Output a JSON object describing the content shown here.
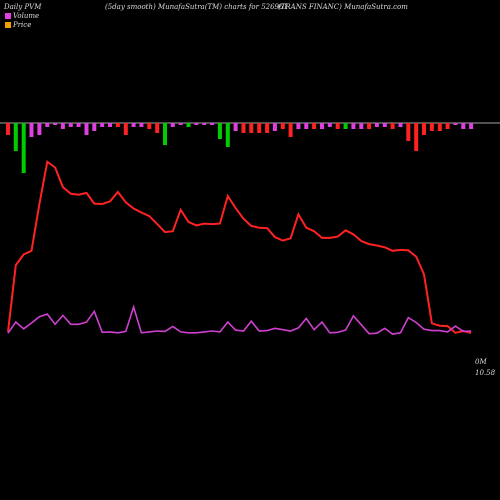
{
  "header": {
    "left": "Daily PVM",
    "center": "(5day smooth) MunafaSutra(TM) charts for 526961",
    "right": "(TRANS FINANC) MunafaSutra.com"
  },
  "legend": {
    "volume_label": "Volume",
    "price_label": "Price",
    "volume_color": "#e040e0",
    "price_color": "#f0a000"
  },
  "annotations": {
    "volume_zero": "0M",
    "last_price": "10.58"
  },
  "chart_data": {
    "type": "line",
    "n_points": 60,
    "series": [
      {
        "name": "Price",
        "color": "#ff2222",
        "values": [
          10.8,
          25.8,
          28.2,
          29.0,
          39.5,
          49.0,
          47.7,
          43.3,
          41.8,
          41.6,
          42.0,
          39.6,
          39.5,
          40.1,
          42.2,
          39.9,
          38.5,
          37.6,
          36.8,
          35.0,
          33.2,
          33.4,
          38.2,
          35.5,
          34.7,
          35.1,
          35.0,
          35.1,
          41.3,
          38.6,
          36.2,
          34.6,
          34.2,
          34.1,
          32.1,
          31.3,
          31.8,
          37.2,
          34.2,
          33.4,
          31.9,
          31.9,
          32.2,
          33.6,
          32.7,
          31.2,
          30.5,
          30.2,
          29.8,
          29.0,
          29.2,
          29.1,
          27.7,
          23.7,
          12.7,
          12.2,
          12.1,
          10.6,
          11.0,
          10.58
        ]
      },
      {
        "name": "Volume (5day smooth)",
        "color": "#d040d0",
        "values": [
          10.5,
          13.0,
          11.5,
          12.8,
          14.2,
          14.8,
          12.5,
          14.5,
          12.5,
          12.5,
          13.0,
          15.4,
          10.7,
          10.8,
          10.6,
          10.9,
          16.4,
          10.6,
          10.8,
          11.0,
          10.9,
          12.0,
          10.8,
          10.6,
          10.6,
          10.8,
          11.0,
          10.8,
          13.0,
          11.2,
          11.0,
          13.2,
          11.0,
          11.1,
          11.6,
          11.3,
          11.0,
          11.7,
          13.8,
          11.3,
          13.0,
          10.6,
          10.7,
          11.2,
          14.4,
          12.4,
          10.4,
          10.5,
          11.6,
          10.3,
          10.6,
          14.0,
          12.9,
          11.4,
          11.1,
          11.1,
          10.8,
          12.1,
          10.9,
          11.0
        ]
      }
    ],
    "volume_bars": [
      {
        "value": -6,
        "color": "#ff2222"
      },
      {
        "value": -14,
        "color": "#00cc00"
      },
      {
        "value": -25,
        "color": "#00cc00"
      },
      {
        "value": -7,
        "color": "#e040e0"
      },
      {
        "value": -6,
        "color": "#e040e0"
      },
      {
        "value": -2,
        "color": "#e040e0"
      },
      {
        "value": -1,
        "color": "#e040e0"
      },
      {
        "value": -3,
        "color": "#e040e0"
      },
      {
        "value": -2,
        "color": "#e040e0"
      },
      {
        "value": -2,
        "color": "#e040e0"
      },
      {
        "value": -6,
        "color": "#e040e0"
      },
      {
        "value": -4,
        "color": "#e040e0"
      },
      {
        "value": -2,
        "color": "#e040e0"
      },
      {
        "value": -2,
        "color": "#e040e0"
      },
      {
        "value": -2,
        "color": "#ff2222"
      },
      {
        "value": -6,
        "color": "#ff2222"
      },
      {
        "value": -2,
        "color": "#e040e0"
      },
      {
        "value": -2,
        "color": "#e040e0"
      },
      {
        "value": -3,
        "color": "#ff2222"
      },
      {
        "value": -5,
        "color": "#ff2222"
      },
      {
        "value": -11,
        "color": "#00cc00"
      },
      {
        "value": -2,
        "color": "#e040e0"
      },
      {
        "value": -1,
        "color": "#e040e0"
      },
      {
        "value": -2,
        "color": "#00cc00"
      },
      {
        "value": -1,
        "color": "#e040e0"
      },
      {
        "value": -1,
        "color": "#e040e0"
      },
      {
        "value": -1,
        "color": "#e040e0"
      },
      {
        "value": -8,
        "color": "#00cc00"
      },
      {
        "value": -12,
        "color": "#00cc00"
      },
      {
        "value": -4,
        "color": "#e040e0"
      },
      {
        "value": -5,
        "color": "#ff2222"
      },
      {
        "value": -5,
        "color": "#ff2222"
      },
      {
        "value": -5,
        "color": "#ff2222"
      },
      {
        "value": -5,
        "color": "#ff2222"
      },
      {
        "value": -4,
        "color": "#e040e0"
      },
      {
        "value": -3,
        "color": "#ff2222"
      },
      {
        "value": -7,
        "color": "#ff2222"
      },
      {
        "value": -3,
        "color": "#e040e0"
      },
      {
        "value": -3,
        "color": "#e040e0"
      },
      {
        "value": -3,
        "color": "#ff2222"
      },
      {
        "value": -3,
        "color": "#e040e0"
      },
      {
        "value": -2,
        "color": "#e040e0"
      },
      {
        "value": -3,
        "color": "#ff2222"
      },
      {
        "value": -3,
        "color": "#00cc00"
      },
      {
        "value": -3,
        "color": "#e040e0"
      },
      {
        "value": -3,
        "color": "#e040e0"
      },
      {
        "value": -3,
        "color": "#ff2222"
      },
      {
        "value": -2,
        "color": "#e040e0"
      },
      {
        "value": -2,
        "color": "#e040e0"
      },
      {
        "value": -3,
        "color": "#ff2222"
      },
      {
        "value": -2,
        "color": "#e040e0"
      },
      {
        "value": -9,
        "color": "#ff2222"
      },
      {
        "value": -14,
        "color": "#ff2222"
      },
      {
        "value": -6,
        "color": "#ff2222"
      },
      {
        "value": -4,
        "color": "#ff2222"
      },
      {
        "value": -4,
        "color": "#ff2222"
      },
      {
        "value": -3,
        "color": "#ff2222"
      },
      {
        "value": -1,
        "color": "#e040e0"
      },
      {
        "value": -3,
        "color": "#e040e0"
      },
      {
        "value": -3,
        "color": "#e040e0"
      }
    ],
    "x_start": 8,
    "x_step": 7.85,
    "ylim": [
      0,
      55
    ]
  }
}
